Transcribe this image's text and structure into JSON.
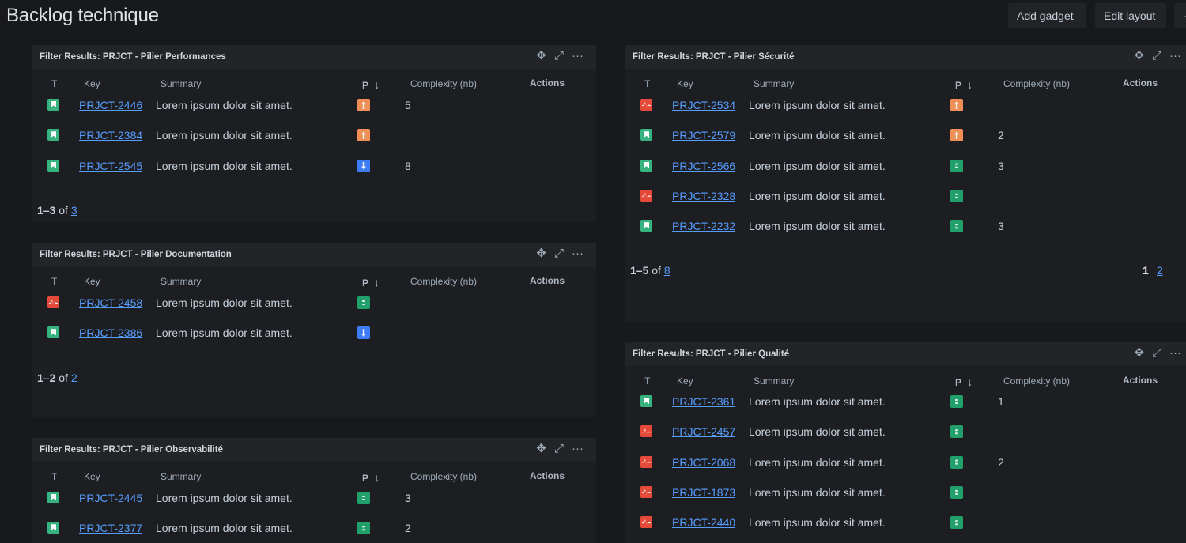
{
  "page": {
    "title": "Backlog technique"
  },
  "toolbar": {
    "add_gadget": "Add gadget",
    "edit_layout": "Edit layout",
    "more": "·"
  },
  "columns": {
    "t": "T",
    "key": "Key",
    "summary": "Summary",
    "p": "P",
    "p_sort_icon": "↓",
    "complexity": "Complexity (nb)",
    "actions": "Actions"
  },
  "gadgets": [
    {
      "title": "Filter Results: PRJCT - Pilier Performances",
      "rows": [
        {
          "type": "story",
          "key": "PRJCT-2446",
          "summary": "Lorem ipsum dolor sit amet.",
          "priority": "high",
          "complexity": "5"
        },
        {
          "type": "story",
          "key": "PRJCT-2384",
          "summary": "Lorem ipsum dolor sit amet.",
          "priority": "high",
          "complexity": ""
        },
        {
          "type": "story",
          "key": "PRJCT-2545",
          "summary": "Lorem ipsum dolor sit amet.",
          "priority": "low",
          "complexity": "8"
        }
      ],
      "pager": {
        "range": "1–3",
        "of": "of",
        "total": "3"
      }
    },
    {
      "title": "Filter Results: PRJCT - Pilier Documentation",
      "rows": [
        {
          "type": "bug",
          "key": "PRJCT-2458",
          "summary": "Lorem ipsum dolor sit amet.",
          "priority": "medium",
          "complexity": ""
        },
        {
          "type": "story",
          "key": "PRJCT-2386",
          "summary": "Lorem ipsum dolor sit amet.",
          "priority": "low",
          "complexity": ""
        }
      ],
      "pager": {
        "range": "1–2",
        "of": "of",
        "total": "2"
      }
    },
    {
      "title": "Filter Results: PRJCT - Pilier Observabilité",
      "rows": [
        {
          "type": "story",
          "key": "PRJCT-2445",
          "summary": "Lorem ipsum dolor sit amet.",
          "priority": "medium",
          "complexity": "3"
        },
        {
          "type": "story",
          "key": "PRJCT-2377",
          "summary": "Lorem ipsum dolor sit amet.",
          "priority": "medium",
          "complexity": "2"
        }
      ]
    },
    {
      "title": "Filter Results: PRJCT - Pilier Sécurité",
      "rows": [
        {
          "type": "bug",
          "key": "PRJCT-2534",
          "summary": "Lorem ipsum dolor sit amet.",
          "priority": "high",
          "complexity": ""
        },
        {
          "type": "story",
          "key": "PRJCT-2579",
          "summary": "Lorem ipsum dolor sit amet.",
          "priority": "high",
          "complexity": "2"
        },
        {
          "type": "story",
          "key": "PRJCT-2566",
          "summary": "Lorem ipsum dolor sit amet.",
          "priority": "medium",
          "complexity": "3"
        },
        {
          "type": "bug",
          "key": "PRJCT-2328",
          "summary": "Lorem ipsum dolor sit amet.",
          "priority": "medium",
          "complexity": ""
        },
        {
          "type": "story",
          "key": "PRJCT-2232",
          "summary": "Lorem ipsum dolor sit amet.",
          "priority": "medium",
          "complexity": "3"
        }
      ],
      "pager": {
        "range": "1–5",
        "of": "of",
        "total": "8",
        "pages": [
          "1",
          "2"
        ]
      }
    },
    {
      "title": "Filter Results: PRJCT - Pilier Qualité",
      "rows": [
        {
          "type": "story",
          "key": "PRJCT-2361",
          "summary": "Lorem ipsum dolor sit amet.",
          "priority": "medium",
          "complexity": "1"
        },
        {
          "type": "bug",
          "key": "PRJCT-2457",
          "summary": "Lorem ipsum dolor sit amet.",
          "priority": "medium",
          "complexity": ""
        },
        {
          "type": "bug",
          "key": "PRJCT-2068",
          "summary": "Lorem ipsum dolor sit amet.",
          "priority": "medium",
          "complexity": "2"
        },
        {
          "type": "bug",
          "key": "PRJCT-1873",
          "summary": "Lorem ipsum dolor sit amet.",
          "priority": "medium",
          "complexity": ""
        },
        {
          "type": "bug",
          "key": "PRJCT-2440",
          "summary": "Lorem ipsum dolor sit amet.",
          "priority": "medium",
          "complexity": ""
        }
      ]
    }
  ]
}
